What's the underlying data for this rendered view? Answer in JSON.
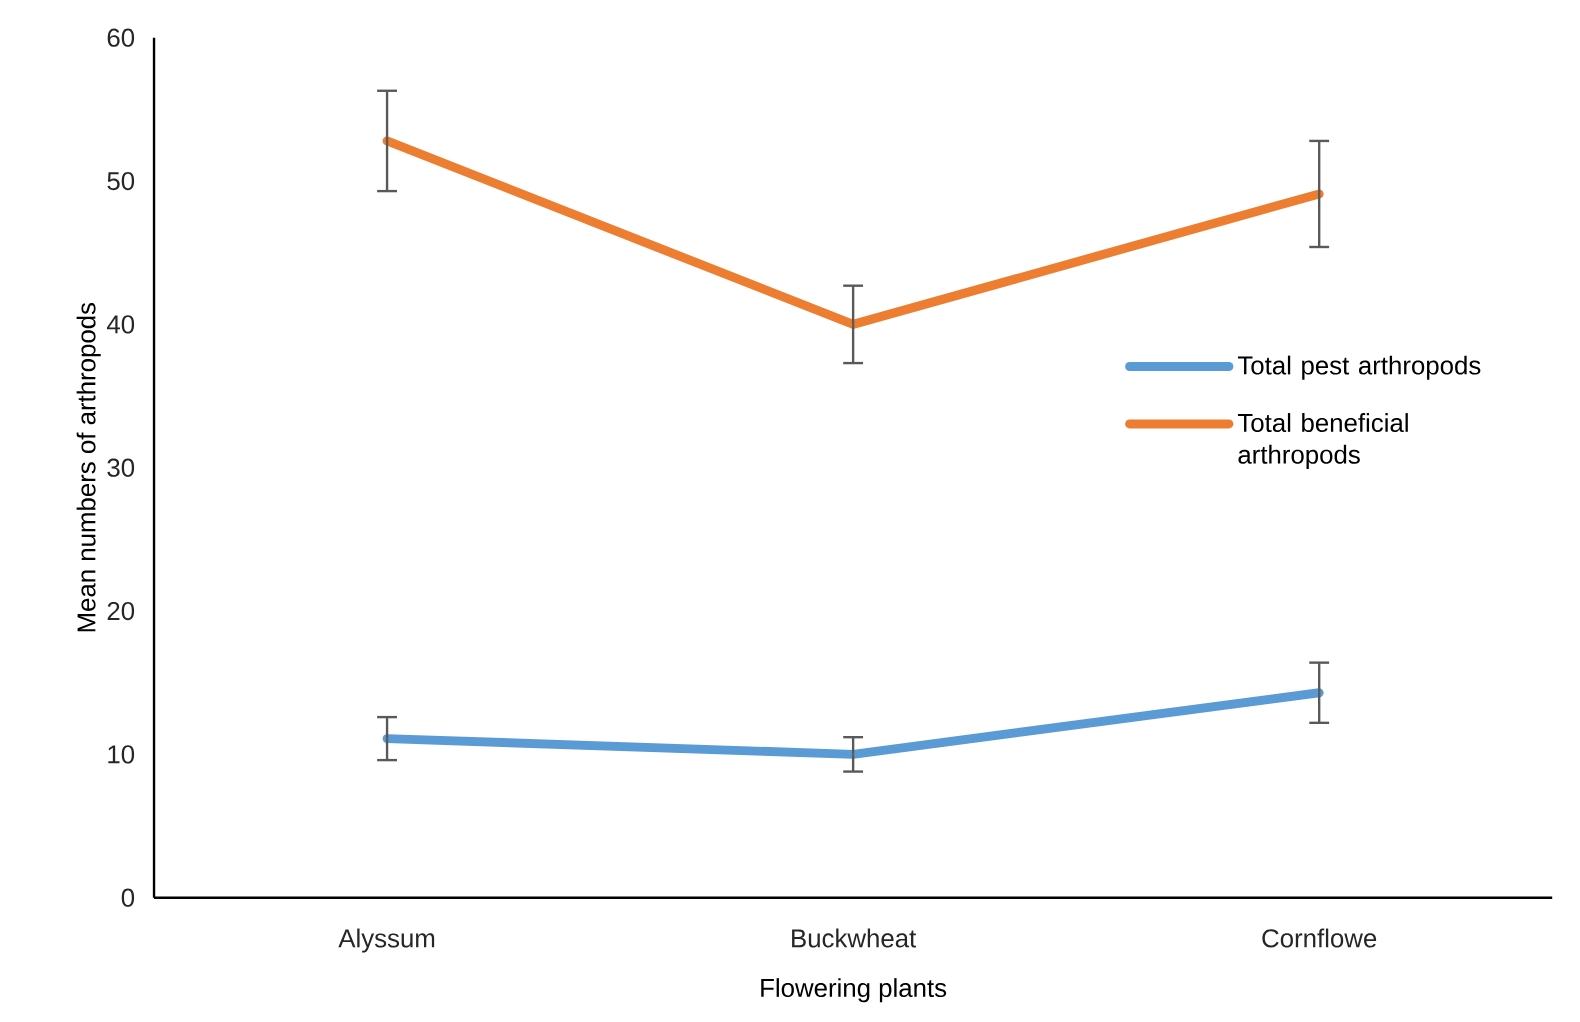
{
  "chart_data": {
    "type": "line",
    "xlabel": "Flowering plants",
    "ylabel": "Mean numbers of arthropods",
    "categories": [
      "Alyssum",
      "Buckwheat",
      "Cornflowe"
    ],
    "series": [
      {
        "name": "Total pest arthropods",
        "color": "#5b9bd5",
        "values": [
          11.1,
          10.0,
          14.3
        ],
        "errors": [
          1.5,
          1.2,
          2.1
        ]
      },
      {
        "name": "Total beneficial arthropods",
        "color": "#ed7d31",
        "values": [
          52.8,
          40.0,
          49.1
        ],
        "errors": [
          3.5,
          2.7,
          3.7
        ]
      }
    ],
    "ylim": [
      0,
      60
    ],
    "yticks": [
      0,
      10,
      20,
      30,
      40,
      50,
      60
    ],
    "legend": "right"
  }
}
